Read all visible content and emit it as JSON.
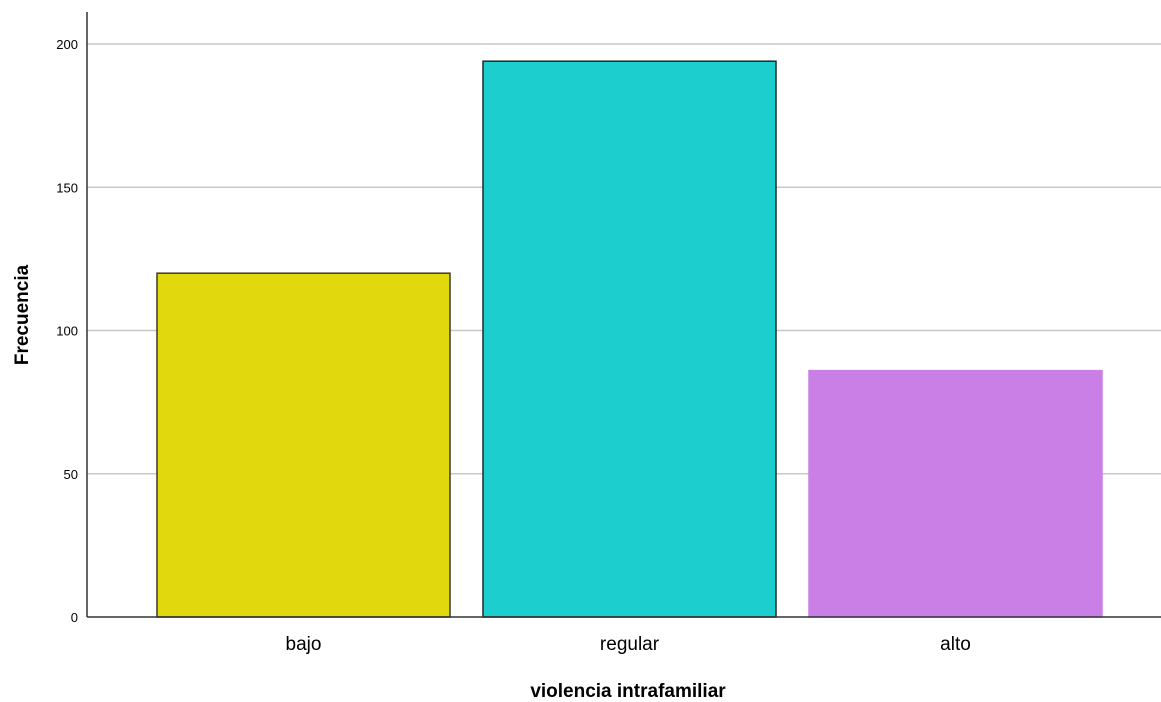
{
  "chart_data": {
    "type": "bar",
    "categories": [
      "bajo",
      "regular",
      "alto"
    ],
    "values": [
      120,
      194,
      86
    ],
    "xlabel": "violencia intrafamiliar",
    "ylabel": "Frecuencia",
    "ylim": [
      0,
      210
    ],
    "yticks": [
      0,
      50,
      100,
      150,
      200
    ],
    "grid": true,
    "legend": "none",
    "colors": [
      "#e2d80e",
      "#1ccece",
      "#ca7fe6"
    ],
    "bar_outline_colors": [
      "#3a3a2a",
      "#1f2a2a",
      "#ca7fe6"
    ],
    "gridline_color": "#c8c8c8",
    "axis_color": "#333333"
  }
}
